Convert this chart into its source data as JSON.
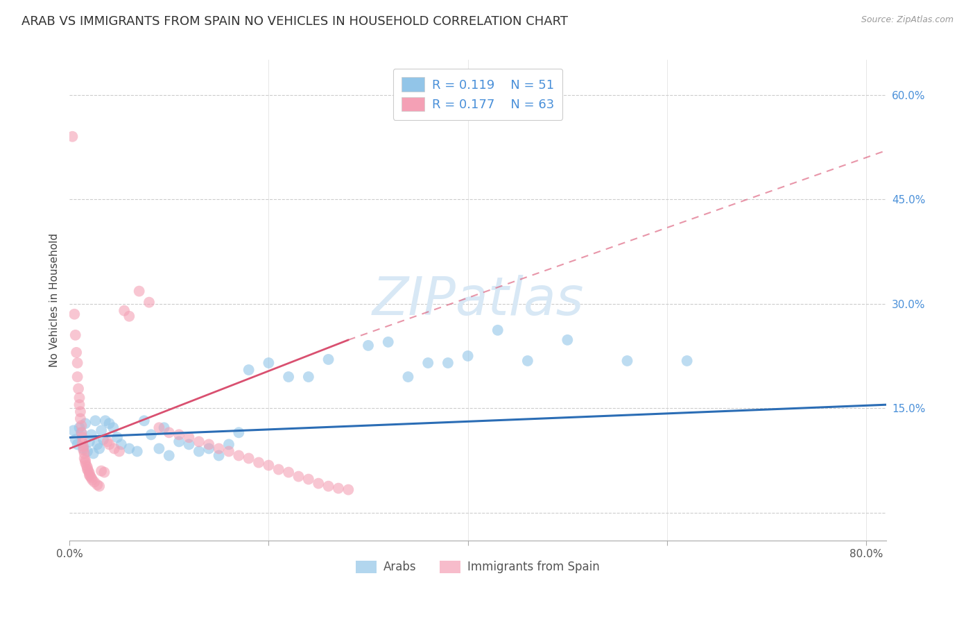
{
  "title": "ARAB VS IMMIGRANTS FROM SPAIN NO VEHICLES IN HOUSEHOLD CORRELATION CHART",
  "source": "Source: ZipAtlas.com",
  "ylabel": "No Vehicles in Household",
  "yticks": [
    0.0,
    0.15,
    0.3,
    0.45,
    0.6
  ],
  "ytick_labels": [
    "",
    "15.0%",
    "30.0%",
    "45.0%",
    "60.0%"
  ],
  "xlim": [
    0.0,
    0.82
  ],
  "ylim": [
    -0.04,
    0.65
  ],
  "watermark": "ZIPatlas",
  "legend_blue_r": "0.119",
  "legend_blue_n": "51",
  "legend_pink_r": "0.177",
  "legend_pink_n": "63",
  "blue_color": "#92C5E8",
  "pink_color": "#F4A0B5",
  "blue_line_color": "#2B6DB5",
  "pink_line_color": "#D95070",
  "blue_scatter": [
    [
      0.004,
      0.118
    ],
    [
      0.006,
      0.105
    ],
    [
      0.008,
      0.098
    ],
    [
      0.01,
      0.122
    ],
    [
      0.012,
      0.115
    ],
    [
      0.014,
      0.092
    ],
    [
      0.016,
      0.128
    ],
    [
      0.018,
      0.088
    ],
    [
      0.02,
      0.102
    ],
    [
      0.022,
      0.112
    ],
    [
      0.024,
      0.085
    ],
    [
      0.026,
      0.132
    ],
    [
      0.028,
      0.098
    ],
    [
      0.03,
      0.092
    ],
    [
      0.032,
      0.118
    ],
    [
      0.034,
      0.105
    ],
    [
      0.036,
      0.132
    ],
    [
      0.04,
      0.128
    ],
    [
      0.044,
      0.122
    ],
    [
      0.048,
      0.108
    ],
    [
      0.052,
      0.098
    ],
    [
      0.06,
      0.092
    ],
    [
      0.068,
      0.088
    ],
    [
      0.075,
      0.132
    ],
    [
      0.082,
      0.112
    ],
    [
      0.09,
      0.092
    ],
    [
      0.095,
      0.122
    ],
    [
      0.1,
      0.082
    ],
    [
      0.11,
      0.102
    ],
    [
      0.12,
      0.098
    ],
    [
      0.13,
      0.088
    ],
    [
      0.14,
      0.092
    ],
    [
      0.15,
      0.082
    ],
    [
      0.16,
      0.098
    ],
    [
      0.17,
      0.115
    ],
    [
      0.18,
      0.205
    ],
    [
      0.2,
      0.215
    ],
    [
      0.22,
      0.195
    ],
    [
      0.24,
      0.195
    ],
    [
      0.26,
      0.22
    ],
    [
      0.3,
      0.24
    ],
    [
      0.32,
      0.245
    ],
    [
      0.34,
      0.195
    ],
    [
      0.36,
      0.215
    ],
    [
      0.38,
      0.215
    ],
    [
      0.4,
      0.225
    ],
    [
      0.43,
      0.262
    ],
    [
      0.46,
      0.218
    ],
    [
      0.5,
      0.248
    ],
    [
      0.56,
      0.218
    ],
    [
      0.62,
      0.218
    ]
  ],
  "pink_scatter": [
    [
      0.003,
      0.54
    ],
    [
      0.005,
      0.285
    ],
    [
      0.006,
      0.255
    ],
    [
      0.007,
      0.23
    ],
    [
      0.008,
      0.215
    ],
    [
      0.008,
      0.195
    ],
    [
      0.009,
      0.178
    ],
    [
      0.01,
      0.165
    ],
    [
      0.01,
      0.155
    ],
    [
      0.011,
      0.145
    ],
    [
      0.011,
      0.135
    ],
    [
      0.012,
      0.125
    ],
    [
      0.012,
      0.115
    ],
    [
      0.013,
      0.108
    ],
    [
      0.013,
      0.1
    ],
    [
      0.014,
      0.095
    ],
    [
      0.014,
      0.09
    ],
    [
      0.015,
      0.085
    ],
    [
      0.015,
      0.078
    ],
    [
      0.016,
      0.075
    ],
    [
      0.016,
      0.072
    ],
    [
      0.017,
      0.068
    ],
    [
      0.018,
      0.065
    ],
    [
      0.018,
      0.062
    ],
    [
      0.019,
      0.06
    ],
    [
      0.02,
      0.057
    ],
    [
      0.02,
      0.054
    ],
    [
      0.021,
      0.052
    ],
    [
      0.022,
      0.05
    ],
    [
      0.023,
      0.047
    ],
    [
      0.025,
      0.044
    ],
    [
      0.028,
      0.04
    ],
    [
      0.03,
      0.038
    ],
    [
      0.032,
      0.06
    ],
    [
      0.035,
      0.058
    ],
    [
      0.038,
      0.102
    ],
    [
      0.04,
      0.098
    ],
    [
      0.045,
      0.092
    ],
    [
      0.05,
      0.088
    ],
    [
      0.055,
      0.29
    ],
    [
      0.06,
      0.282
    ],
    [
      0.07,
      0.318
    ],
    [
      0.08,
      0.302
    ],
    [
      0.09,
      0.122
    ],
    [
      0.1,
      0.115
    ],
    [
      0.11,
      0.112
    ],
    [
      0.12,
      0.108
    ],
    [
      0.13,
      0.102
    ],
    [
      0.14,
      0.098
    ],
    [
      0.15,
      0.092
    ],
    [
      0.16,
      0.088
    ],
    [
      0.17,
      0.082
    ],
    [
      0.18,
      0.078
    ],
    [
      0.19,
      0.072
    ],
    [
      0.2,
      0.068
    ],
    [
      0.21,
      0.062
    ],
    [
      0.22,
      0.058
    ],
    [
      0.23,
      0.052
    ],
    [
      0.24,
      0.048
    ],
    [
      0.25,
      0.042
    ],
    [
      0.26,
      0.038
    ],
    [
      0.27,
      0.035
    ],
    [
      0.28,
      0.033
    ]
  ],
  "blue_trendline": {
    "x_start": 0.0,
    "x_end": 0.82,
    "y_start": 0.108,
    "y_end": 0.155
  },
  "pink_trendline_solid": {
    "x_start": 0.0,
    "x_end": 0.28,
    "y_start": 0.092,
    "y_end": 0.248
  },
  "pink_trendline_dashed": {
    "x_start": 0.28,
    "x_end": 0.82,
    "y_start": 0.248,
    "y_end": 0.52
  },
  "background_color": "#ffffff",
  "grid_color": "#cccccc",
  "title_fontsize": 13,
  "label_fontsize": 11,
  "tick_fontsize": 11,
  "watermark_color": "#D8E8F5",
  "watermark_fontsize": 55
}
